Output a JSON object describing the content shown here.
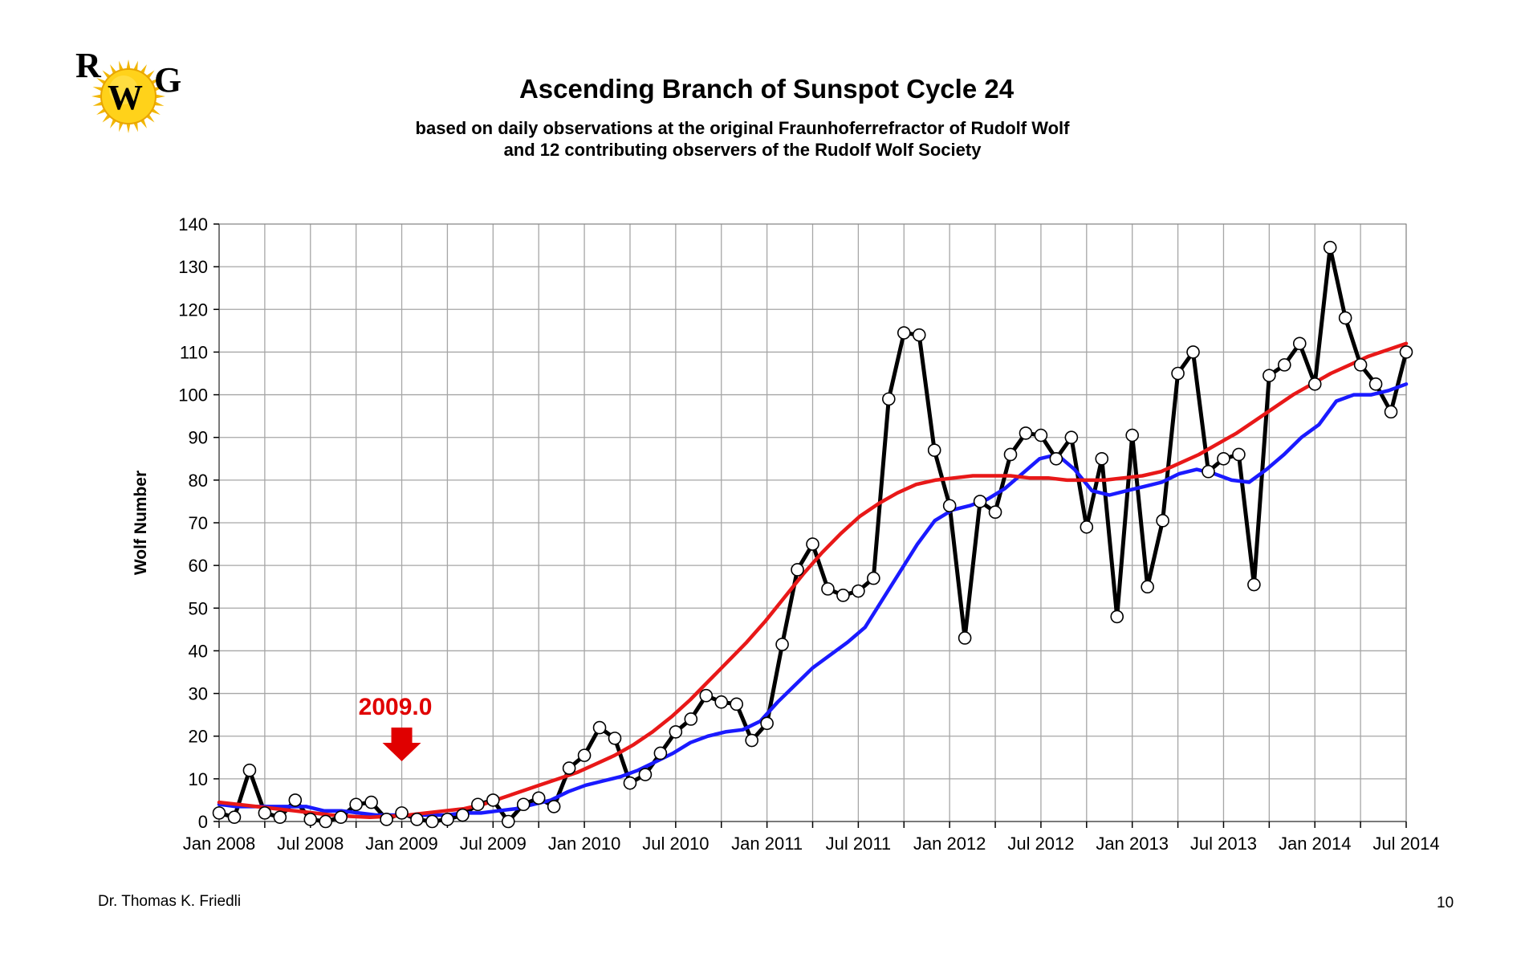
{
  "logo": {
    "text_r": "R",
    "text_w": "W",
    "text_g": "G"
  },
  "title": "Ascending Branch of Sunspot Cycle 24",
  "subtitle_line1": "based on daily observations at the original Fraunhoferrefractor of Rudolf Wolf",
  "subtitle_line2": "and 12 contributing observers of the Rudolf Wolf Society",
  "footer_author": "Dr. Thomas K. Friedli",
  "page_number": "10",
  "colors": {
    "monthly": "#000000",
    "blue": "#1a1aff",
    "red": "#e81818",
    "annotation": "#e00000",
    "grid": "#a6a6a6"
  },
  "chart_data": {
    "type": "line",
    "title": "Ascending Branch of Sunspot Cycle 24",
    "xlabel": "",
    "ylabel": "Wolf Number",
    "ylim": [
      0,
      140
    ],
    "yticks": [
      0,
      10,
      20,
      30,
      40,
      50,
      60,
      70,
      80,
      90,
      100,
      110,
      120,
      130,
      140
    ],
    "x_tick_labels": [
      "Jan 2008",
      "Jul 2008",
      "Jan 2009",
      "Jul 2009",
      "Jan 2010",
      "Jul 2010",
      "Jan 2011",
      "Jul 2011",
      "Jan 2012",
      "Jul 2012",
      "Jan 2013",
      "Jul 2013",
      "Jan 2014",
      "Jul 2014"
    ],
    "xlim": [
      "Jan 2008",
      "Jul 2014"
    ],
    "grid": true,
    "annotation": {
      "text": "2009.0",
      "x": "Jan 2009"
    },
    "series": [
      {
        "values": [
          2.0,
          1.0,
          12.0,
          2.0,
          1.0,
          5.0,
          0.5,
          0.0,
          1.0,
          4.0,
          4.5,
          0.5,
          2.0,
          0.5,
          0.0,
          0.5,
          1.5,
          4.0,
          5.0,
          0.0,
          4.0,
          5.5,
          3.5,
          12.5,
          15.5,
          22.0,
          19.5,
          9.0,
          11.0,
          16.0,
          21.0,
          24.0,
          29.5,
          28.0,
          27.5,
          19.0,
          23.0,
          41.5,
          59.0,
          65.0,
          54.5,
          53.0,
          54.0,
          57.0,
          99.0,
          114.5,
          114.0,
          87.0,
          74.0,
          43.0,
          75.0,
          72.5,
          86.0,
          91.0,
          90.5,
          85.0,
          90.0,
          69.0,
          85.0,
          48.0,
          90.5,
          55.0,
          70.5,
          105.0,
          110.0,
          82.0,
          85.0,
          86.0,
          55.5,
          104.5,
          107.0,
          112.0,
          102.5,
          134.5,
          118.0,
          107.0,
          102.5,
          96.0,
          110.0
        ]
      },
      {
        "values": [
          4.0,
          3.5,
          3.5,
          3.5,
          3.5,
          3.5,
          2.5,
          2.5,
          2.0,
          1.5,
          1.5,
          1.5,
          1.5,
          1.5,
          2.0,
          2.0,
          2.5,
          3.0,
          4.0,
          5.0,
          7.0,
          8.5,
          9.5,
          10.5,
          12.0,
          14.0,
          16.0,
          18.5,
          20.0,
          21.0,
          21.5,
          23.5,
          28.0,
          32.0,
          36.0,
          39.0,
          42.0,
          45.5,
          52.0,
          58.5,
          65.0,
          70.5,
          73.0,
          74.0,
          75.5,
          78.0,
          81.5,
          85.0,
          86.0,
          82.5,
          77.5,
          76.5,
          77.5,
          78.5,
          79.5,
          81.5,
          82.5,
          81.5,
          80.0,
          79.5,
          82.5,
          86.0,
          90.0,
          93.0,
          98.5,
          100.0,
          100.0,
          101.0,
          102.5
        ]
      },
      {
        "values": [
          4.5,
          4.0,
          3.5,
          3.0,
          2.5,
          2.0,
          1.5,
          1.2,
          1.0,
          1.2,
          1.5,
          2.0,
          2.5,
          3.0,
          4.0,
          5.5,
          7.0,
          8.5,
          10.0,
          11.5,
          13.5,
          15.5,
          18.0,
          21.0,
          24.5,
          28.5,
          33.0,
          37.5,
          42.0,
          47.0,
          52.5,
          58.0,
          63.0,
          67.5,
          71.5,
          74.5,
          77.0,
          79.0,
          80.0,
          80.5,
          81.0,
          81.0,
          81.0,
          80.5,
          80.5,
          80.0,
          80.0,
          80.0,
          80.5,
          81.0,
          82.0,
          84.0,
          86.0,
          88.5,
          91.0,
          94.0,
          97.0,
          100.0,
          102.5,
          105.0,
          107.0,
          109.0,
          110.5,
          112.0
        ]
      }
    ]
  }
}
